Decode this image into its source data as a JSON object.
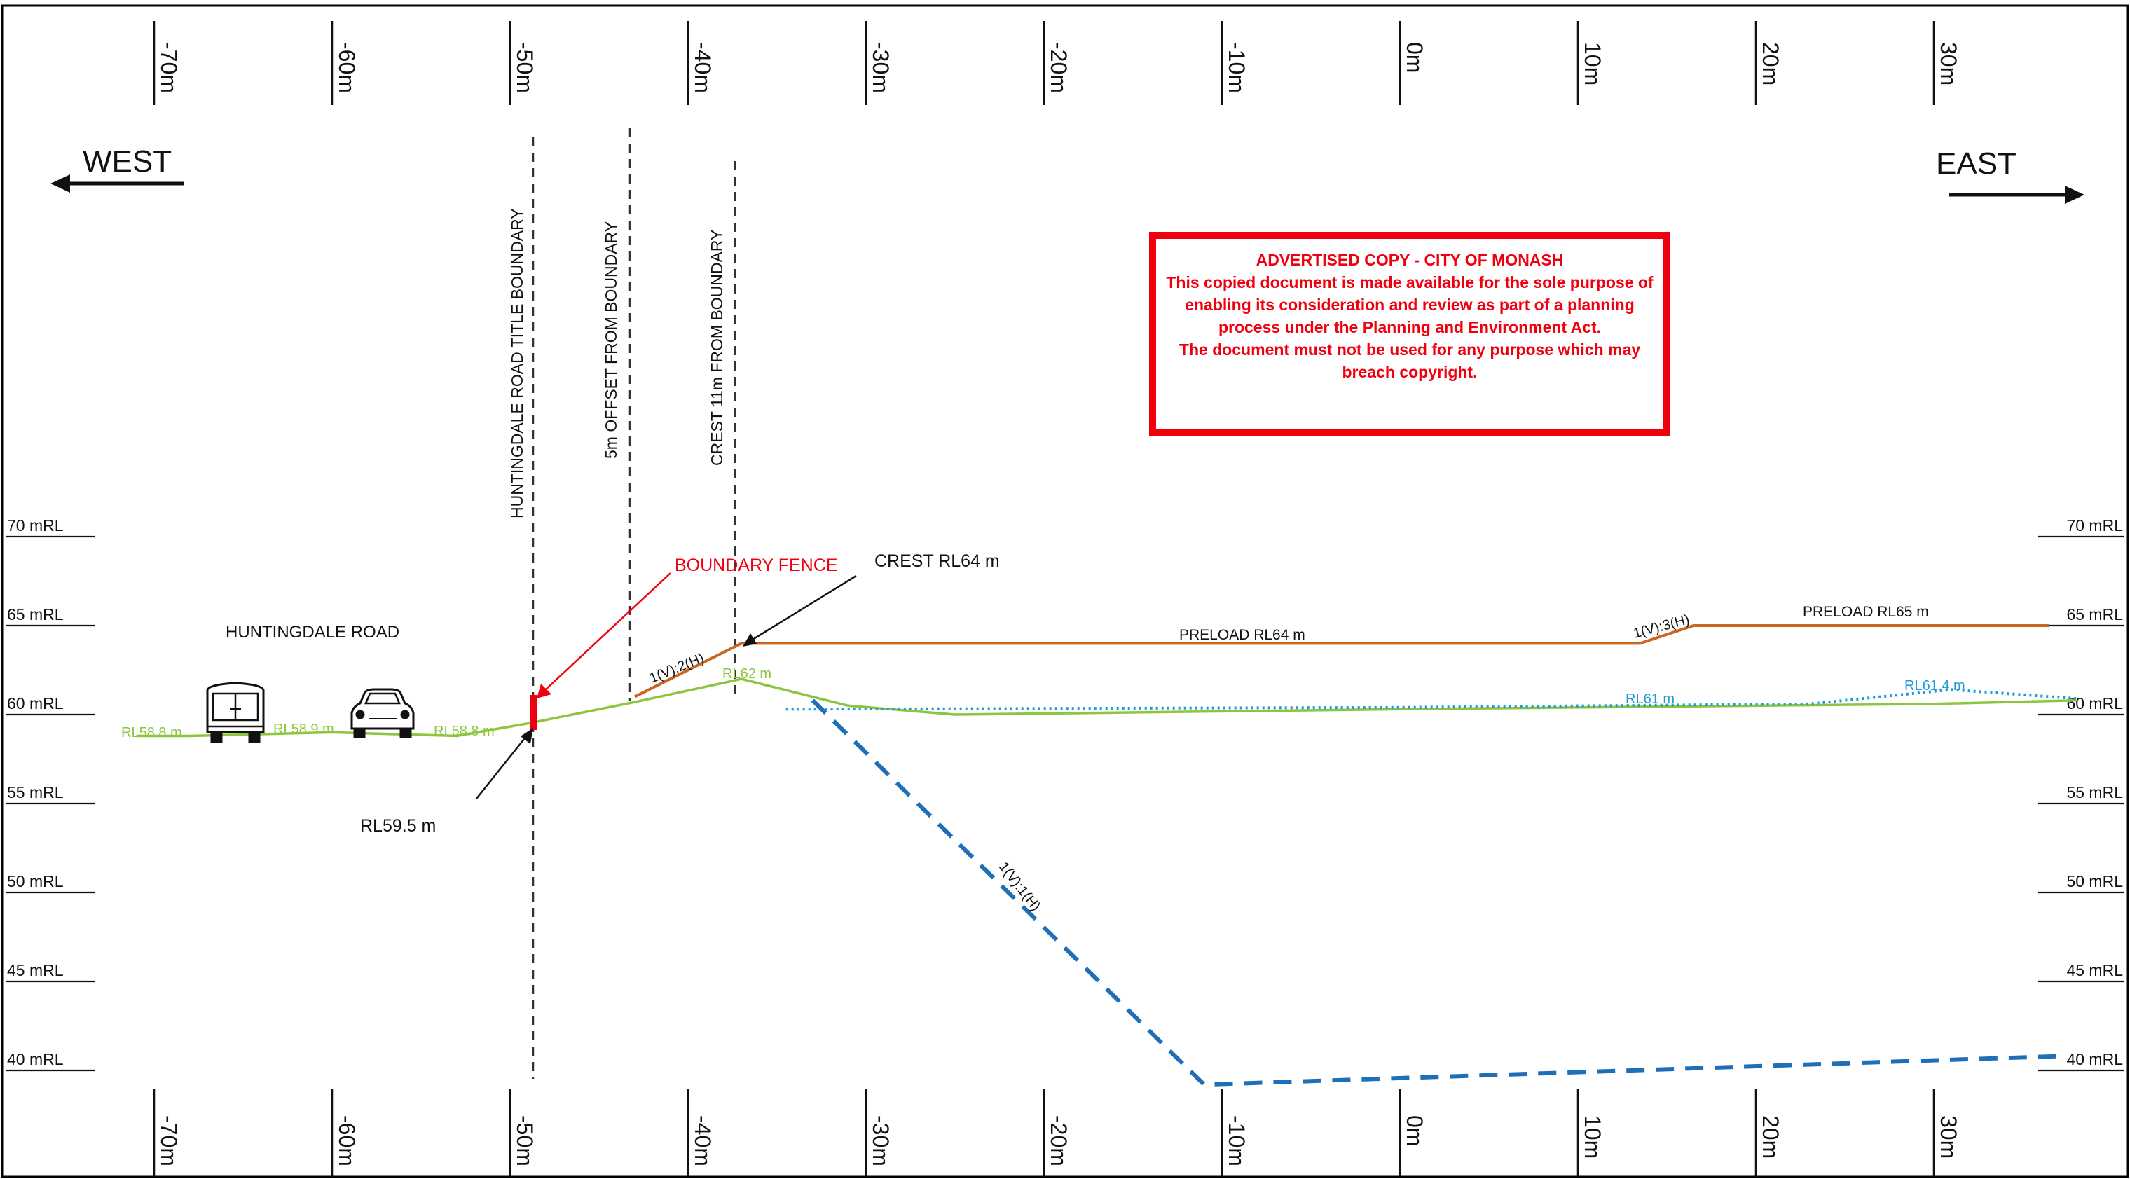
{
  "chart_data": {
    "type": "diagram",
    "x_ticks": [
      "-70m",
      "-60m",
      "-50m",
      "-40m",
      "-30m",
      "-20m",
      "-10m",
      "0m",
      "10m",
      "20m",
      "30m"
    ],
    "y_levels": [
      "70 mRL",
      "65 mRL",
      "60 mRL",
      "55 mRL",
      "50 mRL",
      "45 mRL",
      "40 mRL"
    ],
    "directions": {
      "west": "WEST",
      "east": "EAST"
    },
    "boundary_lines": [
      {
        "name": "title-boundary",
        "label": "HUNTINGDALE ROAD TITLE BOUNDARY"
      },
      {
        "name": "offset-boundary",
        "label": "5m OFFSET FROM BOUNDARY"
      },
      {
        "name": "crest-boundary",
        "label": "CREST 11m FROM BOUNDARY"
      }
    ],
    "labels": {
      "road": "HUNTINGDALE ROAD",
      "boundary_fence": "BOUNDARY FENCE",
      "crest": "CREST RL64 m",
      "rl595": "RL59.5 m",
      "preload64": "PRELOAD RL64 m",
      "preload65": "PRELOAD RL65 m",
      "slope12": "1(V):2(H)",
      "slope13": "1(V):3(H)",
      "slope11": "1(V):1(H)",
      "rl588a": "RL58.8 m",
      "rl589": "RL58.9 m",
      "rl588b": "RL58.8 m",
      "rl62": "RL62 m",
      "rl61": "RL61 m",
      "rl614": "RL61.4 m"
    },
    "series": [
      {
        "key": "existing",
        "color": "#8cc63f",
        "points": [
          [
            -71,
            58.8
          ],
          [
            -68,
            58.8
          ],
          [
            -60,
            59.0
          ],
          [
            -53,
            58.8
          ],
          [
            -49,
            59.5
          ],
          [
            -43,
            60.7
          ],
          [
            -37,
            62.0
          ],
          [
            -31,
            60.5
          ],
          [
            -25,
            60.0
          ],
          [
            0,
            60.3
          ],
          [
            30,
            60.6
          ],
          [
            38,
            60.8
          ]
        ]
      },
      {
        "key": "preload",
        "color": "#c9661f",
        "points": [
          [
            -43,
            61.0
          ],
          [
            -37,
            64.0
          ],
          [
            13.5,
            64.0
          ],
          [
            16.5,
            65.0
          ],
          [
            36.5,
            65.0
          ]
        ]
      },
      {
        "key": "water",
        "color": "#1e9ad6",
        "points": [
          [
            -34.5,
            60.3
          ],
          [
            0,
            60.4
          ],
          [
            23,
            60.6
          ],
          [
            31,
            61.4
          ],
          [
            38,
            60.9
          ]
        ]
      },
      {
        "key": "excavation",
        "color": "#1f6fb8",
        "points": [
          [
            -33,
            60.8
          ],
          [
            -11,
            39.2
          ],
          [
            37,
            40.8
          ]
        ]
      }
    ]
  },
  "notice": {
    "title": "ADVERTISED COPY - CITY OF MONASH",
    "lines": [
      "This copied document is made available for the sole purpose of",
      "enabling its consideration and review as part of a planning",
      "process under the Planning and Environment Act.",
      "The document must not be used for any purpose which may",
      "breach copyright."
    ]
  },
  "colors": {
    "red": "#f0000f",
    "ground": "#8cc63f",
    "preload": "#c9661f",
    "water": "#1e9ad6",
    "excavation": "#1f6fb8",
    "text": "#111111"
  }
}
